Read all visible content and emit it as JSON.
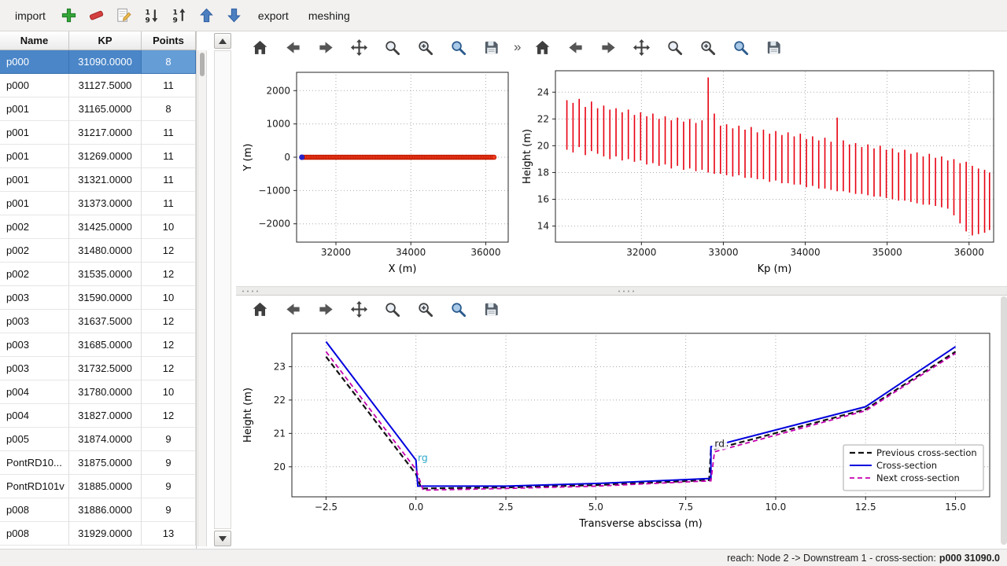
{
  "toolbar": {
    "import_label": "import",
    "export_label": "export",
    "meshing_label": "meshing",
    "overflow_chevron": "»",
    "icon_buttons": [
      "add",
      "remove",
      "edit",
      "sort-descending",
      "sort-ascending",
      "move-up",
      "move-down"
    ]
  },
  "plot_toolbar": {
    "buttons": [
      "home",
      "back",
      "forward",
      "pan",
      "zoom",
      "zoom-in",
      "zoom-region",
      "save"
    ]
  },
  "table": {
    "headers": [
      "Name",
      "KP",
      "Points"
    ],
    "rows": [
      {
        "name": "p000",
        "kp": "31090.0000",
        "points": "8",
        "selected": true
      },
      {
        "name": "p000",
        "kp": "31127.5000",
        "points": "11",
        "selected": false
      },
      {
        "name": "p001",
        "kp": "31165.0000",
        "points": "8",
        "selected": false
      },
      {
        "name": "p001",
        "kp": "31217.0000",
        "points": "11",
        "selected": false
      },
      {
        "name": "p001",
        "kp": "31269.0000",
        "points": "11",
        "selected": false
      },
      {
        "name": "p001",
        "kp": "31321.0000",
        "points": "11",
        "selected": false
      },
      {
        "name": "p001",
        "kp": "31373.0000",
        "points": "11",
        "selected": false
      },
      {
        "name": "p002",
        "kp": "31425.0000",
        "points": "10",
        "selected": false
      },
      {
        "name": "p002",
        "kp": "31480.0000",
        "points": "12",
        "selected": false
      },
      {
        "name": "p002",
        "kp": "31535.0000",
        "points": "12",
        "selected": false
      },
      {
        "name": "p003",
        "kp": "31590.0000",
        "points": "10",
        "selected": false
      },
      {
        "name": "p003",
        "kp": "31637.5000",
        "points": "12",
        "selected": false
      },
      {
        "name": "p003",
        "kp": "31685.0000",
        "points": "12",
        "selected": false
      },
      {
        "name": "p003",
        "kp": "31732.5000",
        "points": "12",
        "selected": false
      },
      {
        "name": "p004",
        "kp": "31780.0000",
        "points": "10",
        "selected": false
      },
      {
        "name": "p004",
        "kp": "31827.0000",
        "points": "12",
        "selected": false
      },
      {
        "name": "p005",
        "kp": "31874.0000",
        "points": "9",
        "selected": false
      },
      {
        "name": "PontRD10...",
        "kp": "31875.0000",
        "points": "9",
        "selected": false
      },
      {
        "name": "PontRD101v",
        "kp": "31885.0000",
        "points": "9",
        "selected": false
      },
      {
        "name": "p008",
        "kp": "31886.0000",
        "points": "9",
        "selected": false
      },
      {
        "name": "p008",
        "kp": "31929.0000",
        "points": "13",
        "selected": false
      }
    ]
  },
  "status": {
    "prefix": "reach: Node 2 -> Downstream 1 - cross-section: ",
    "selection": "p000 31090.0"
  },
  "chart_data": [
    {
      "id": "plan-view",
      "type": "scatter",
      "title": "",
      "xlabel": "X (m)",
      "ylabel": "Y (m)",
      "xlim": [
        30950,
        36600
      ],
      "ylim": [
        -2550,
        2550
      ],
      "xticks": {
        "values": [
          32000,
          34000,
          36000
        ],
        "labels": [
          "32000",
          "34000",
          "36000"
        ]
      },
      "yticks": {
        "values": [
          2000,
          1000,
          0,
          -1000,
          -2000
        ],
        "labels": [
          "2000",
          "1000",
          "0",
          "−1000",
          "−2000"
        ]
      },
      "grid": true,
      "margins": {
        "l": 72,
        "r": 14,
        "t": 16,
        "b": 56
      },
      "series": [
        {
          "name": "cross-section-positions",
          "marker": "circle",
          "color": "#f03b20",
          "edge": "#c11c00",
          "x_start": 31090,
          "x_end": 36260,
          "x_step": 45,
          "y": 0,
          "r": 2.8
        },
        {
          "name": "selected-cross-section",
          "marker": "circle",
          "color": "#2222cc",
          "edge": "#2222cc",
          "points": [
            [
              31090,
              0
            ]
          ],
          "r": 3
        }
      ]
    },
    {
      "id": "longitudinal-profile",
      "type": "vbars",
      "title": "",
      "xlabel": "Kp (m)",
      "ylabel": "Height (m)",
      "xlim": [
        30950,
        36300
      ],
      "ylim": [
        12.8,
        25.6
      ],
      "xticks": {
        "values": [
          32000,
          33000,
          34000,
          35000,
          36000
        ],
        "labels": [
          "32000",
          "33000",
          "34000",
          "35000",
          "36000"
        ]
      },
      "yticks": {
        "values": [
          14,
          16,
          18,
          20,
          22,
          24
        ],
        "labels": [
          "14",
          "16",
          "18",
          "20",
          "22",
          "24"
        ]
      },
      "grid": true,
      "margins": {
        "l": 46,
        "r": 12,
        "t": 14,
        "b": 56
      },
      "color": "#e80010",
      "bars": [
        [
          31090,
          19.7,
          23.4
        ],
        [
          31165,
          19.5,
          23.2
        ],
        [
          31240,
          19.9,
          23.5
        ],
        [
          31315,
          19.3,
          22.9
        ],
        [
          31390,
          19.6,
          23.3
        ],
        [
          31465,
          19.4,
          22.8
        ],
        [
          31540,
          19.2,
          23.0
        ],
        [
          31615,
          19.0,
          22.7
        ],
        [
          31690,
          19.2,
          22.8
        ],
        [
          31765,
          18.9,
          22.5
        ],
        [
          31840,
          19.0,
          22.7
        ],
        [
          31915,
          18.8,
          22.3
        ],
        [
          31990,
          18.9,
          22.5
        ],
        [
          32065,
          18.6,
          22.2
        ],
        [
          32140,
          18.7,
          22.4
        ],
        [
          32215,
          18.5,
          22.0
        ],
        [
          32290,
          18.6,
          22.2
        ],
        [
          32365,
          18.3,
          21.9
        ],
        [
          32440,
          18.5,
          22.1
        ],
        [
          32515,
          18.2,
          21.8
        ],
        [
          32590,
          18.3,
          22.0
        ],
        [
          32665,
          18.1,
          21.7
        ],
        [
          32740,
          18.2,
          21.9
        ],
        [
          32815,
          18.0,
          25.1
        ],
        [
          32890,
          17.9,
          22.4
        ],
        [
          32965,
          17.9,
          21.5
        ],
        [
          33040,
          17.8,
          21.6
        ],
        [
          33115,
          17.7,
          21.3
        ],
        [
          33190,
          17.8,
          21.5
        ],
        [
          33265,
          17.6,
          21.2
        ],
        [
          33340,
          17.6,
          21.4
        ],
        [
          33415,
          17.5,
          21.0
        ],
        [
          33490,
          17.5,
          21.2
        ],
        [
          33565,
          17.3,
          20.9
        ],
        [
          33640,
          17.4,
          21.1
        ],
        [
          33715,
          17.2,
          20.8
        ],
        [
          33790,
          17.2,
          21.0
        ],
        [
          33865,
          17.1,
          20.7
        ],
        [
          33940,
          17.1,
          20.9
        ],
        [
          34015,
          16.9,
          20.5
        ],
        [
          34090,
          17.0,
          20.7
        ],
        [
          34165,
          16.8,
          20.4
        ],
        [
          34240,
          16.8,
          20.6
        ],
        [
          34315,
          16.7,
          20.3
        ],
        [
          34390,
          16.6,
          22.1
        ],
        [
          34465,
          16.6,
          20.4
        ],
        [
          34540,
          16.5,
          20.1
        ],
        [
          34615,
          16.4,
          20.2
        ],
        [
          34690,
          16.4,
          19.9
        ],
        [
          34765,
          16.3,
          20.1
        ],
        [
          34840,
          16.2,
          19.8
        ],
        [
          34915,
          16.2,
          20.0
        ],
        [
          34990,
          16.1,
          19.7
        ],
        [
          35065,
          16.0,
          19.8
        ],
        [
          35140,
          15.9,
          19.5
        ],
        [
          35215,
          15.9,
          19.7
        ],
        [
          35290,
          15.8,
          19.4
        ],
        [
          35365,
          15.7,
          19.5
        ],
        [
          35440,
          15.6,
          19.2
        ],
        [
          35515,
          15.6,
          19.4
        ],
        [
          35590,
          15.5,
          19.1
        ],
        [
          35665,
          15.4,
          19.2
        ],
        [
          35740,
          15.3,
          18.9
        ],
        [
          35815,
          14.8,
          19.0
        ],
        [
          35890,
          14.2,
          18.7
        ],
        [
          35965,
          13.6,
          18.8
        ],
        [
          36040,
          13.3,
          18.5
        ],
        [
          36115,
          13.4,
          18.3
        ],
        [
          36190,
          13.5,
          18.2
        ],
        [
          36250,
          13.7,
          18.0
        ]
      ]
    },
    {
      "id": "cross-section-profile",
      "type": "line",
      "title": "",
      "xlabel": "Transverse abscissa (m)",
      "ylabel": "Height (m)",
      "xlim": [
        -3.45,
        15.95
      ],
      "ylim": [
        19.1,
        24.0
      ],
      "xticks": {
        "values": [
          -2.5,
          0,
          2.5,
          5,
          7.5,
          10,
          12.5,
          15
        ],
        "labels": [
          "−2.5",
          "0.0",
          "2.5",
          "5.0",
          "7.5",
          "10.0",
          "12.5",
          "15.0"
        ]
      },
      "yticks": {
        "values": [
          20,
          21,
          22,
          23
        ],
        "labels": [
          "20",
          "21",
          "22",
          "23"
        ]
      },
      "grid": true,
      "margins": {
        "l": 66,
        "r": 14,
        "t": 12,
        "b": 62
      },
      "legend": true,
      "series": [
        {
          "name": "Previous cross-section",
          "color": "#111111",
          "dash": "7,4",
          "width": 2.2,
          "points": [
            [
              -2.5,
              23.3
            ],
            [
              0,
              19.78
            ],
            [
              0.15,
              19.35
            ],
            [
              2.5,
              19.38
            ],
            [
              5,
              19.45
            ],
            [
              8.15,
              19.6
            ],
            [
              8.2,
              20.5
            ],
            [
              12.5,
              21.72
            ],
            [
              15,
              23.45
            ]
          ]
        },
        {
          "name": "Cross-section",
          "color": "#0000dd",
          "dash": "",
          "width": 2,
          "points": [
            [
              -2.5,
              23.75
            ],
            [
              0,
              20.2
            ],
            [
              0.05,
              19.42
            ],
            [
              2.5,
              19.42
            ],
            [
              5,
              19.5
            ],
            [
              8.2,
              19.65
            ],
            [
              8.2,
              20.6
            ],
            [
              12.5,
              21.8
            ],
            [
              15,
              23.6
            ]
          ]
        },
        {
          "name": "Next cross-section",
          "color": "#c400b0",
          "dash": "6,4",
          "width": 1.8,
          "points": [
            [
              -2.5,
              23.45
            ],
            [
              0,
              19.92
            ],
            [
              0.2,
              19.3
            ],
            [
              2.5,
              19.35
            ],
            [
              5,
              19.42
            ],
            [
              8.2,
              19.58
            ],
            [
              8.3,
              20.45
            ],
            [
              12.5,
              21.68
            ],
            [
              15,
              23.4
            ]
          ]
        }
      ],
      "annotations": [
        {
          "text": "rg",
          "x": 0.05,
          "y": 20.2,
          "color": "#2fa8cc",
          "box": false
        },
        {
          "text": "rd",
          "x": 8.3,
          "y": 20.62,
          "color": "#222222",
          "box": true
        }
      ]
    }
  ]
}
